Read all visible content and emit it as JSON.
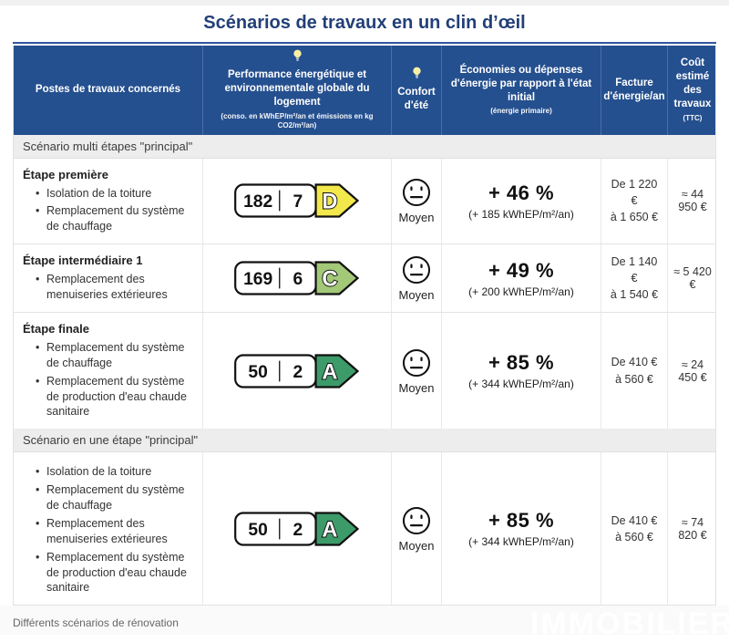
{
  "title": "Scénarios de travaux en un clin d’œil",
  "caption": "Différents scénarios de rénovation",
  "watermark": "IMMOBILIER",
  "colors": {
    "header_bg": "#25508f",
    "title_text": "#223f78",
    "epc_d": "#f2e84b",
    "epc_c": "#a2c878",
    "epc_a": "#3d9b6a"
  },
  "header": {
    "col_postes": "Postes de travaux concernés",
    "col_perf_title": "Performance énergétique et environnementale globale du logement",
    "col_perf_sub": "(conso. en kWhEP/m²/an et émissions en kg CO2/m²/an)",
    "col_confort_line1": "Confort",
    "col_confort_line2": "d'été",
    "col_eco_title": "Économies ou dépenses d'énergie par rapport à l'état initial",
    "col_eco_sub": "(énergie primaire)",
    "col_facture": "Facture d'énergie/an",
    "col_cout_title": "Coût estimé des travaux",
    "col_cout_sub": "(TTC)"
  },
  "sections": {
    "multi": "Scénario multi étapes \"principal\"",
    "single": "Scénario en une étape \"principal\""
  },
  "rows": [
    {
      "title": "Étape première",
      "items": [
        "Isolation de la toiture",
        "Remplacement du système de chauffage"
      ],
      "epc": {
        "conso": "182",
        "co2": "7",
        "letter": "D",
        "color": "#f2e84b"
      },
      "comfort": "Moyen",
      "savings_pct": "+ 46 %",
      "savings_sub": "(+ 185 kWhEP/m²/an)",
      "bill_line1": "De 1 220 €",
      "bill_line2": "à 1 650 €",
      "cost": "≈ 44 950 €"
    },
    {
      "title": "Étape intermédiaire 1",
      "items": [
        "Remplacement des menuiseries extérieures"
      ],
      "epc": {
        "conso": "169",
        "co2": "6",
        "letter": "C",
        "color": "#a2c878"
      },
      "comfort": "Moyen",
      "savings_pct": "+ 49 %",
      "savings_sub": "(+ 200 kWhEP/m²/an)",
      "bill_line1": "De 1 140 €",
      "bill_line2": "à 1 540 €",
      "cost": "≈ 5 420 €"
    },
    {
      "title": "Étape finale",
      "items": [
        "Remplacement du système de chauffage",
        "Remplacement du système de production d'eau chaude sanitaire"
      ],
      "epc": {
        "conso": "50",
        "co2": "2",
        "letter": "A",
        "color": "#3d9b6a"
      },
      "comfort": "Moyen",
      "savings_pct": "+ 85 %",
      "savings_sub": "(+ 344 kWhEP/m²/an)",
      "bill_line1": "De 410 €",
      "bill_line2": "à 560 €",
      "cost": "≈ 24 450 €"
    },
    {
      "title": "",
      "items": [
        "Isolation de la toiture",
        "Remplacement du système de chauffage",
        "Remplacement des menuiseries extérieures",
        "Remplacement du système de production d'eau chaude sanitaire"
      ],
      "epc": {
        "conso": "50",
        "co2": "2",
        "letter": "A",
        "color": "#3d9b6a"
      },
      "comfort": "Moyen",
      "savings_pct": "+ 85 %",
      "savings_sub": "(+ 344 kWhEP/m²/an)",
      "bill_line1": "De 410 €",
      "bill_line2": "à 560 €",
      "cost": "≈ 74 820 €"
    }
  ]
}
